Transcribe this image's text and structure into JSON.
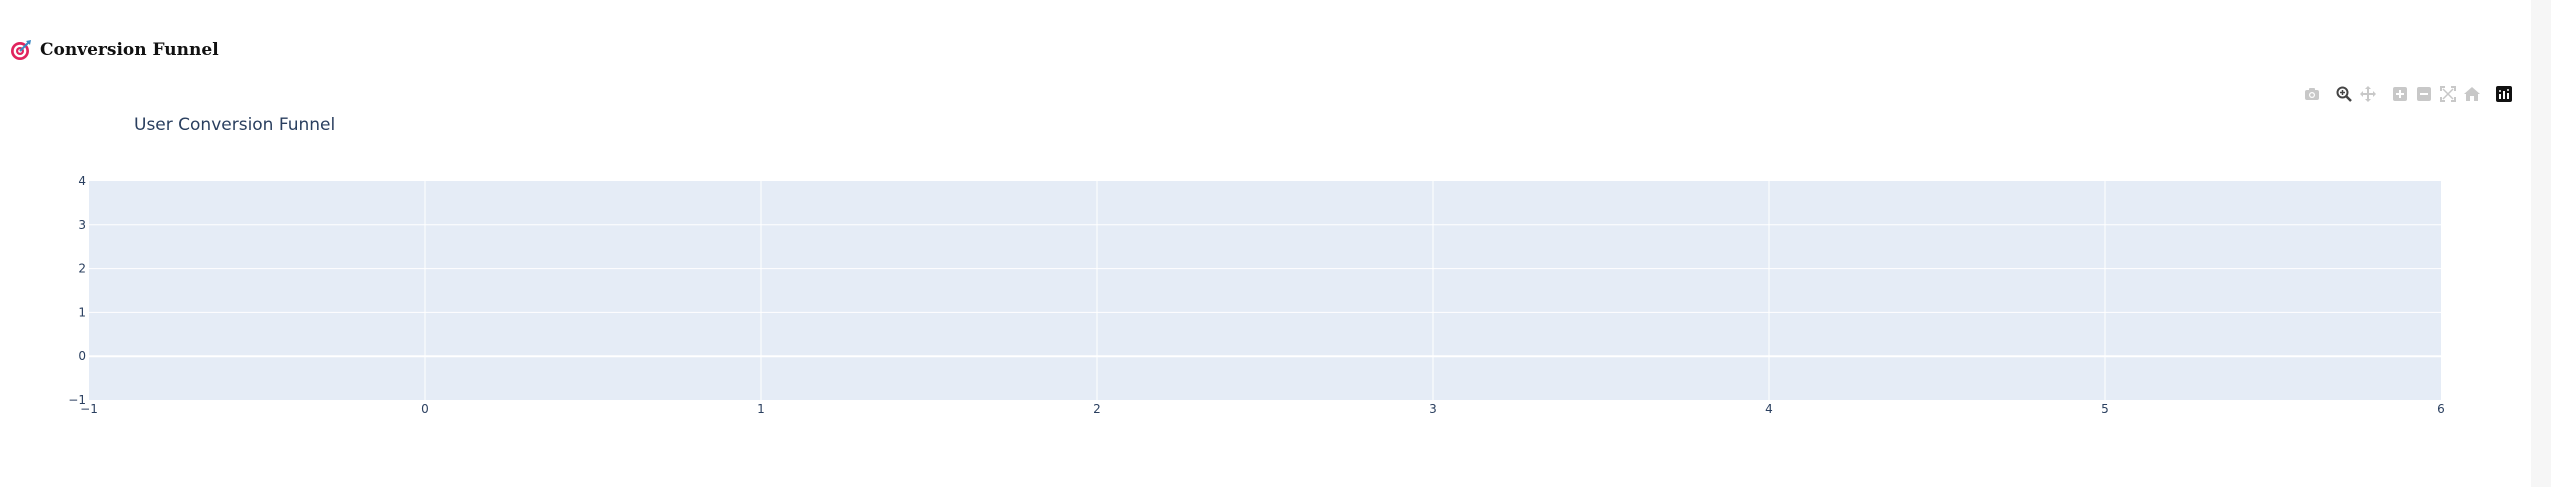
{
  "header": {
    "icon": "target-icon",
    "title": "Conversion Funnel"
  },
  "modebar": {
    "buttons": [
      {
        "name": "camera-icon",
        "label": "Download plot as a png"
      },
      {
        "name": "zoom-icon",
        "label": "Zoom"
      },
      {
        "name": "pan-icon",
        "label": "Pan"
      },
      {
        "name": "zoom-in-icon",
        "label": "Zoom in"
      },
      {
        "name": "zoom-out-icon",
        "label": "Zoom out"
      },
      {
        "name": "autoscale-icon",
        "label": "Autoscale"
      },
      {
        "name": "home-icon",
        "label": "Reset axes"
      },
      {
        "name": "plotly-logo-icon",
        "label": "Produced with Plotly"
      }
    ],
    "active": "zoom-icon"
  },
  "chart_data": {
    "type": "bar",
    "title": "User Conversion Funnel",
    "xlabel": "",
    "ylabel": "",
    "xlim": [
      -1,
      6
    ],
    "ylim": [
      -1,
      4
    ],
    "x_ticks": [
      "−1",
      "0",
      "1",
      "2",
      "3",
      "4",
      "5",
      "6"
    ],
    "y_ticks": [
      "−1",
      "0",
      "1",
      "2",
      "3",
      "4"
    ],
    "series": [],
    "grid": true,
    "legend": "none",
    "colors": {
      "plot_bg": "#e5ecf6",
      "grid": "#ffffff",
      "text": "#2a3f5f"
    }
  }
}
